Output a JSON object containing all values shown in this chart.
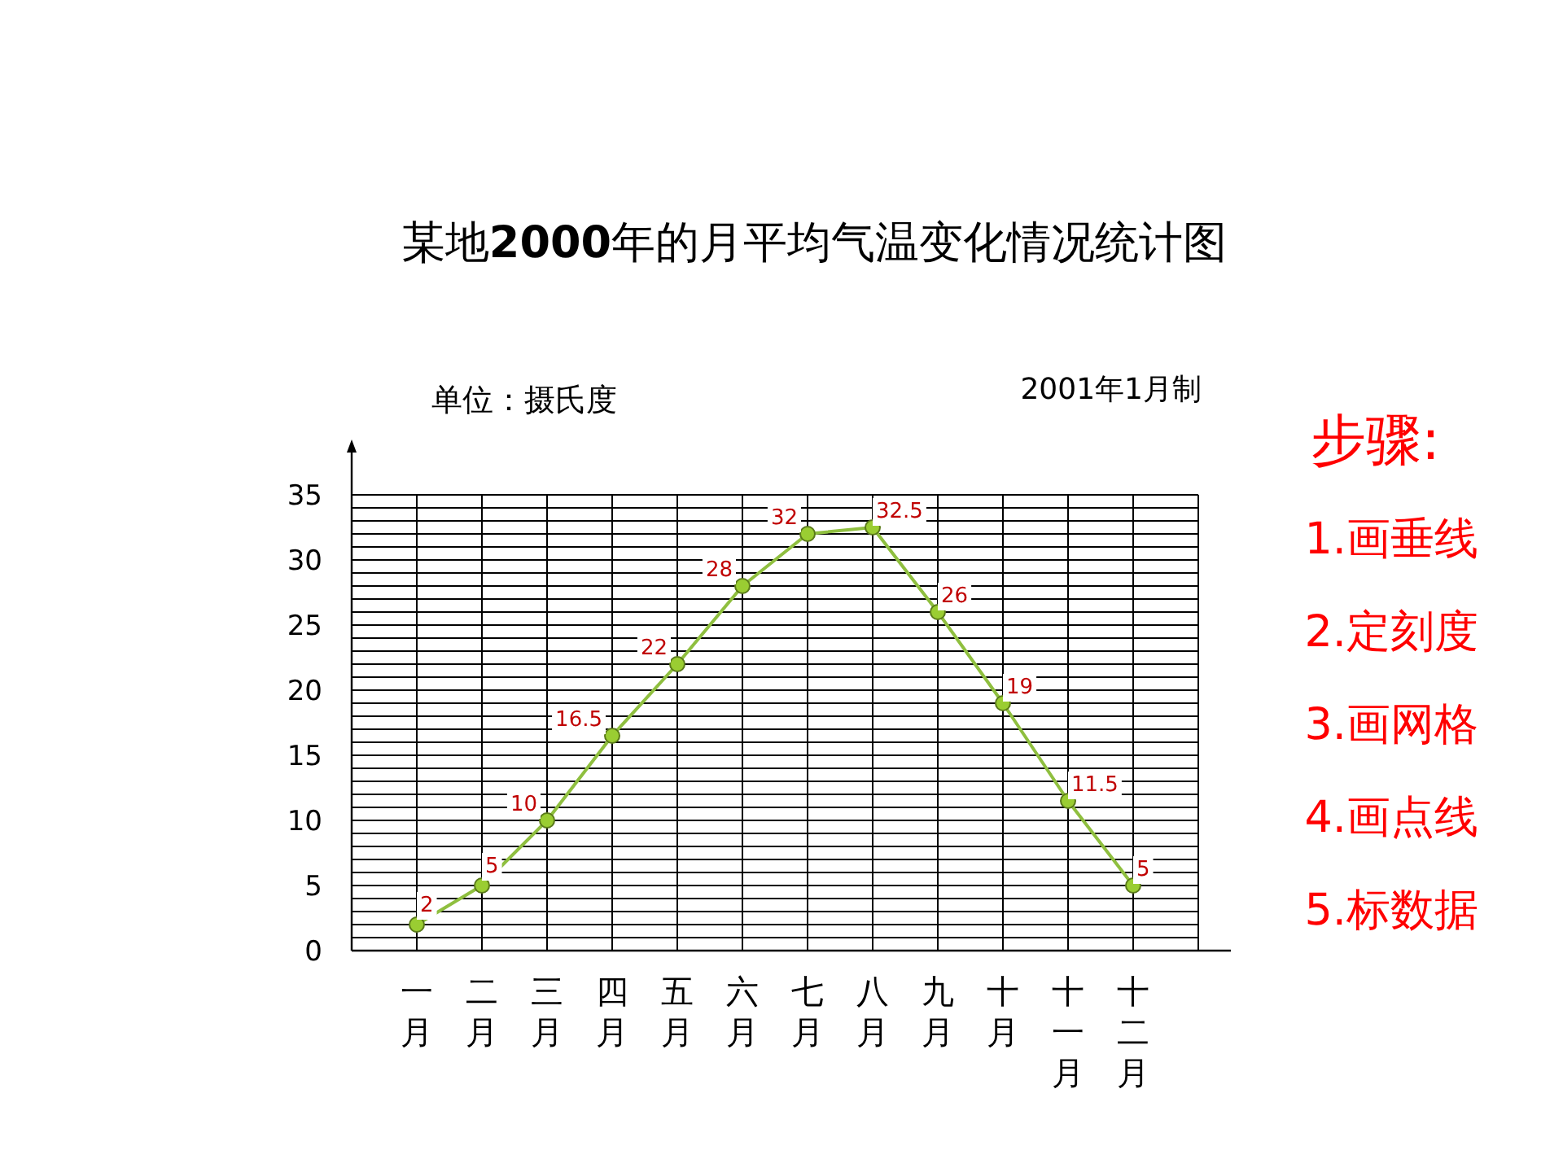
{
  "chart_data": {
    "type": "line",
    "title": "某地2000年的月平均气温变化情况统计图",
    "ylabel": "单位：摄氏度",
    "annotations": [
      "2001年1月制",
      "步骤:",
      "1.画垂线",
      "2.定刻度",
      "3.画网格",
      "4.画点线",
      "5.标数据"
    ],
    "categories": [
      "一月",
      "二月",
      "三月",
      "四月",
      "五月",
      "六月",
      "七月",
      "八月",
      "九月",
      "十月",
      "十一月",
      "十二月"
    ],
    "series": [
      {
        "color": "#8fbf3f",
        "values": [
          2,
          5,
          10,
          16.5,
          22,
          28,
          32,
          32.5,
          26,
          19,
          11.5,
          5
        ]
      }
    ],
    "ylim": [
      0,
      35
    ],
    "yticks": [
      0,
      5,
      10,
      15,
      20,
      25,
      30,
      35
    ],
    "grid": true,
    "marker": "circle",
    "line_style": "solid",
    "data_labels": true
  }
}
